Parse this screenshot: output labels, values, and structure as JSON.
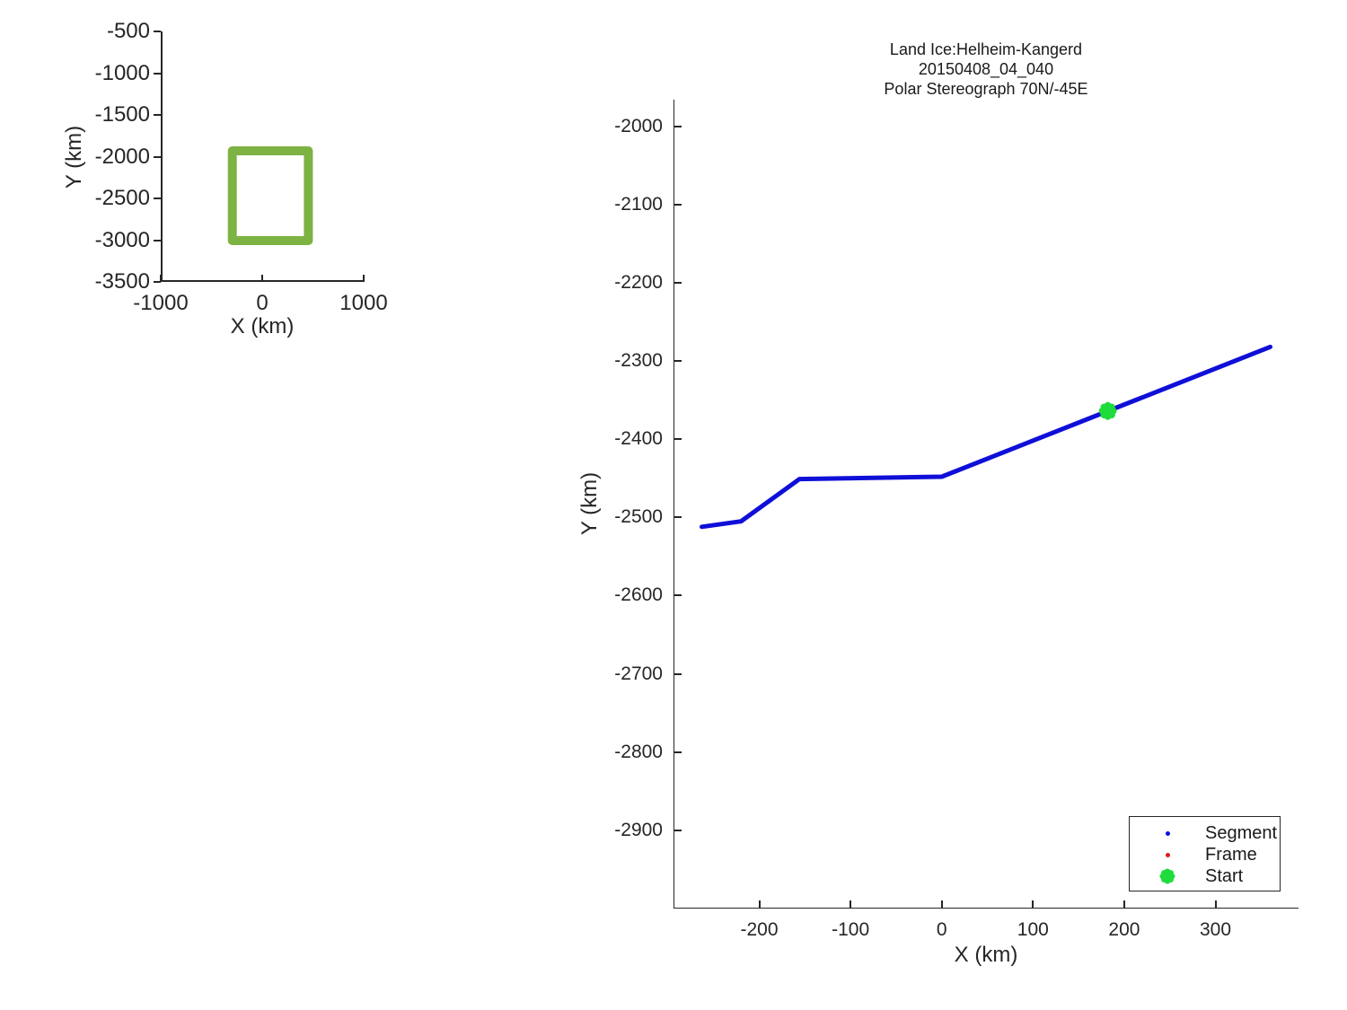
{
  "figure": {
    "background": "#ffffff",
    "axis_color": "#262626"
  },
  "chart_data": [
    {
      "type": "line",
      "name": "overview-locator-plot",
      "title": "",
      "xlabel": "X (km)",
      "ylabel": "Y (km)",
      "xlim": [
        -1000,
        1000
      ],
      "ylim": [
        -3500,
        -500
      ],
      "xticks": [
        -1000,
        0,
        1000
      ],
      "yticks": [
        -500,
        -1000,
        -1500,
        -2000,
        -2500,
        -3000,
        -3500
      ],
      "grid": false,
      "series": [
        {
          "name": "coverage-outline",
          "type": "line",
          "color": "#7cb342",
          "line_width": 10,
          "closed": true,
          "x": [
            -295,
            455,
            455,
            -295,
            -295
          ],
          "y": [
            -1930,
            -1930,
            -3005,
            -3005,
            -1930
          ]
        }
      ]
    },
    {
      "type": "line",
      "name": "ground-track-plot",
      "title_lines": [
        "Land Ice:Helheim-Kangerd",
        "20150408_04_040",
        "Polar Stereograph 70N/-45E"
      ],
      "xlabel": "X (km)",
      "ylabel": "Y (km)",
      "xlim": [
        -294,
        391
      ],
      "ylim": [
        -3000,
        -1966
      ],
      "xticks": [
        -200,
        -100,
        0,
        100,
        200,
        300
      ],
      "yticks": [
        -2000,
        -2100,
        -2200,
        -2300,
        -2400,
        -2500,
        -2600,
        -2700,
        -2800,
        -2900
      ],
      "grid": false,
      "legend": {
        "position": "lower right",
        "items": [
          {
            "label": "Segment",
            "marker": "dot",
            "color": "#0f0fd8"
          },
          {
            "label": "Frame",
            "marker": "dot",
            "color": "#e01818"
          },
          {
            "label": "Start",
            "marker": "burst",
            "color": "#1edc3c"
          }
        ]
      },
      "series": [
        {
          "name": "Segment",
          "type": "line",
          "color": "#0f0fd8",
          "line_width": 5,
          "x": [
            -263,
            -220,
            -156,
            0,
            360
          ],
          "y": [
            -2512,
            -2505,
            -2451,
            -2448,
            -2282
          ]
        },
        {
          "name": "Start",
          "type": "scatter",
          "marker": "burst",
          "color": "#1edc3c",
          "marker_size": 20,
          "x": [
            182
          ],
          "y": [
            -2364
          ]
        }
      ]
    }
  ]
}
